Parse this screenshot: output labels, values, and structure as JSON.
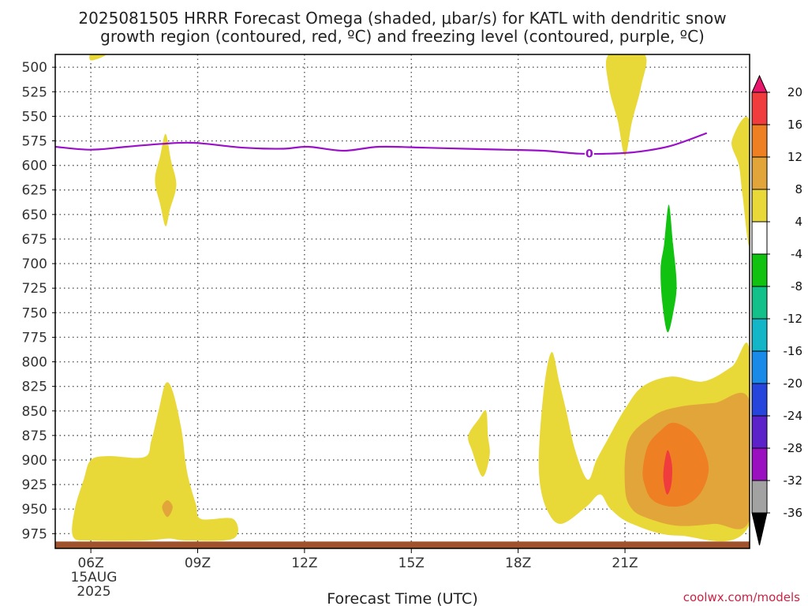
{
  "title_lines": [
    "2025081505 HRRR Forecast Omega (shaded, μbar/s) for KATL with dendritic snow",
    "growth region (contoured, red, ºC) and freezing level (contoured, purple, ºC)"
  ],
  "credit": "coolwx.com/models",
  "chart_data": {
    "type": "heatmap",
    "title": "2025081505 HRRR Forecast Omega (shaded, μbar/s) for KATL with dendritic snow growth region (contoured, red, ºC) and freezing level (contoured, purple, ºC)",
    "xlabel": "Forecast Time (UTC)",
    "ylabel": "",
    "x_axis": {
      "unit": "hour UTC",
      "range": [
        5,
        24.5
      ],
      "ticks": [
        6,
        9,
        12,
        15,
        18,
        21
      ],
      "tick_labels": [
        "06Z",
        "09Z",
        "12Z",
        "15Z",
        "18Z",
        "21Z"
      ],
      "date_label_lines": [
        "15AUG",
        "2025"
      ]
    },
    "y_axis": {
      "unit": "hPa",
      "range": [
        990,
        487
      ],
      "ticks": [
        500,
        525,
        550,
        575,
        600,
        625,
        650,
        675,
        700,
        725,
        750,
        775,
        800,
        825,
        850,
        875,
        900,
        925,
        950,
        975
      ],
      "grid": "dotted"
    },
    "colorbar": {
      "label_values": [
        20,
        16,
        12,
        8,
        4,
        -4,
        -8,
        -12,
        -16,
        -20,
        -24,
        -28,
        -32,
        -36
      ],
      "bands": [
        {
          "min": 20,
          "max": null,
          "color": "#e8176c"
        },
        {
          "min": 16,
          "max": 20,
          "color": "#f03c3c"
        },
        {
          "min": 12,
          "max": 16,
          "color": "#ee7f22"
        },
        {
          "min": 8,
          "max": 12,
          "color": "#e2a53a"
        },
        {
          "min": 4,
          "max": 8,
          "color": "#e8d838"
        },
        {
          "min": -4,
          "max": 4,
          "color": "#ffffff"
        },
        {
          "min": -8,
          "max": -4,
          "color": "#11c211"
        },
        {
          "min": -12,
          "max": -8,
          "color": "#13c08a"
        },
        {
          "min": -16,
          "max": -12,
          "color": "#12b6c6"
        },
        {
          "min": -20,
          "max": -16,
          "color": "#1a8ae8"
        },
        {
          "min": -24,
          "max": -20,
          "color": "#2545dc"
        },
        {
          "min": -28,
          "max": -24,
          "color": "#5a22c8"
        },
        {
          "min": -32,
          "max": -28,
          "color": "#9a10c0"
        },
        {
          "min": -36,
          "max": -32,
          "color": "#a2a2a2"
        },
        {
          "min": null,
          "max": -36,
          "color": "#000000"
        }
      ]
    },
    "freezing_level": {
      "label": "0",
      "color": "#9a10c8",
      "points": [
        [
          5,
          581
        ],
        [
          6,
          584
        ],
        [
          7,
          581
        ],
        [
          8,
          578
        ],
        [
          8.9,
          577
        ],
        [
          10.3,
          582
        ],
        [
          11.4,
          583
        ],
        [
          12.1,
          581
        ],
        [
          13.1,
          585
        ],
        [
          14.1,
          581
        ],
        [
          15.4,
          582
        ],
        [
          16.5,
          583
        ],
        [
          17.6,
          584
        ],
        [
          18.7,
          585
        ],
        [
          19.7,
          588
        ],
        [
          20.6,
          588
        ],
        [
          21.4,
          586
        ],
        [
          22.3,
          580
        ],
        [
          23.3,
          567
        ]
      ]
    },
    "omega_regions": [
      {
        "name": "omega-yellow-region",
        "value_band": [
          4,
          8
        ],
        "color": "#e8d838",
        "points": [
          [
            6.0,
            487
          ],
          [
            6.4,
            487
          ],
          [
            6.3,
            490
          ],
          [
            6.0,
            493
          ]
        ]
      },
      {
        "name": "omega-yellow-region",
        "value_band": [
          4,
          8
        ],
        "color": "#e8d838",
        "points": [
          [
            8.1,
            568
          ],
          [
            8.25,
            595
          ],
          [
            8.4,
            620
          ],
          [
            8.22,
            645
          ],
          [
            8.1,
            662
          ],
          [
            7.95,
            640
          ],
          [
            7.8,
            615
          ],
          [
            7.95,
            590
          ]
        ]
      },
      {
        "name": "omega-yellow-region",
        "value_band": [
          4,
          8
        ],
        "color": "#e8d838",
        "points": [
          [
            20.55,
            487
          ],
          [
            21.55,
            487
          ],
          [
            21.45,
            520
          ],
          [
            21.2,
            555
          ],
          [
            21.0,
            590
          ],
          [
            20.8,
            555
          ],
          [
            20.55,
            520
          ]
        ]
      },
      {
        "name": "omega-yellow-region",
        "value_band": [
          4,
          8
        ],
        "color": "#e8d838",
        "points": [
          [
            24.0,
            575
          ],
          [
            24.5,
            556
          ],
          [
            24.5,
            680
          ],
          [
            24.3,
            630
          ],
          [
            24.2,
            600
          ]
        ]
      },
      {
        "name": "omega-yellow-region",
        "value_band": [
          4,
          8
        ],
        "color": "#e8d838",
        "points": [
          [
            5.5,
            978
          ],
          [
            5.55,
            950
          ],
          [
            5.8,
            920
          ],
          [
            6.0,
            900
          ],
          [
            6.5,
            896
          ],
          [
            7.5,
            897
          ],
          [
            7.7,
            880
          ],
          [
            7.9,
            850
          ],
          [
            8.1,
            822
          ],
          [
            8.3,
            830
          ],
          [
            8.55,
            870
          ],
          [
            8.65,
            900
          ],
          [
            8.75,
            920
          ],
          [
            8.95,
            945
          ],
          [
            9.1,
            960
          ],
          [
            10.0,
            960
          ],
          [
            10.0,
            980
          ],
          [
            8.7,
            982
          ],
          [
            8.2,
            980
          ],
          [
            7.5,
            982
          ],
          [
            6.0,
            982
          ]
        ]
      },
      {
        "name": "omega-yellow-region",
        "value_band": [
          4,
          8
        ],
        "color": "#e8d838",
        "points": [
          [
            16.9,
            858
          ],
          [
            17.1,
            850
          ],
          [
            17.15,
            875
          ],
          [
            17.2,
            895
          ],
          [
            17.0,
            917
          ],
          [
            16.7,
            890
          ],
          [
            16.6,
            875
          ]
        ]
      },
      {
        "name": "omega-yellow-region",
        "value_band": [
          4,
          8
        ],
        "color": "#e8d838",
        "points": [
          [
            18.6,
            880
          ],
          [
            18.75,
            820
          ],
          [
            18.95,
            790
          ],
          [
            19.15,
            820
          ],
          [
            19.35,
            850
          ],
          [
            19.6,
            890
          ],
          [
            19.95,
            920
          ],
          [
            20.2,
            900
          ],
          [
            20.5,
            880
          ],
          [
            21.0,
            848
          ],
          [
            21.5,
            825
          ],
          [
            22.3,
            815
          ],
          [
            23.2,
            820
          ],
          [
            24.0,
            805
          ],
          [
            24.5,
            790
          ],
          [
            24.5,
            965
          ],
          [
            22.5,
            977
          ],
          [
            21.2,
            965
          ],
          [
            20.6,
            950
          ],
          [
            20.3,
            935
          ],
          [
            19.9,
            948
          ],
          [
            19.2,
            965
          ],
          [
            18.8,
            950
          ],
          [
            18.6,
            920
          ]
        ]
      },
      {
        "name": "omega-orange-region",
        "value_band": [
          8,
          12
        ],
        "color": "#e2a53a",
        "points": [
          [
            8.0,
            948
          ],
          [
            8.15,
            941
          ],
          [
            8.3,
            948
          ],
          [
            8.15,
            958
          ]
        ]
      },
      {
        "name": "omega-orange-region",
        "value_band": [
          8,
          12
        ],
        "color": "#e2a53a",
        "points": [
          [
            21.0,
            928
          ],
          [
            21.1,
            880
          ],
          [
            21.8,
            855
          ],
          [
            22.5,
            846
          ],
          [
            23.5,
            842
          ],
          [
            24.5,
            840
          ],
          [
            24.5,
            960
          ],
          [
            23.5,
            965
          ],
          [
            22.5,
            967
          ],
          [
            21.7,
            960
          ],
          [
            21.2,
            950
          ]
        ]
      },
      {
        "name": "omega-dark-orange-region",
        "value_band": [
          12,
          16
        ],
        "color": "#ee7f22",
        "points": [
          [
            21.5,
            910
          ],
          [
            21.65,
            885
          ],
          [
            22.0,
            870
          ],
          [
            22.35,
            862
          ],
          [
            22.85,
            870
          ],
          [
            23.2,
            888
          ],
          [
            23.35,
            910
          ],
          [
            23.15,
            932
          ],
          [
            22.75,
            945
          ],
          [
            22.2,
            947
          ],
          [
            21.75,
            940
          ],
          [
            21.55,
            925
          ]
        ]
      },
      {
        "name": "omega-red-region",
        "value_band": [
          16,
          20
        ],
        "color": "#f03c3c",
        "points": [
          [
            22.1,
            905
          ],
          [
            22.2,
            890
          ],
          [
            22.32,
            905
          ],
          [
            22.3,
            925
          ],
          [
            22.18,
            935
          ],
          [
            22.08,
            920
          ]
        ]
      },
      {
        "name": "omega-green-region",
        "value_band": [
          -8,
          -4
        ],
        "color": "#11c211",
        "points": [
          [
            22.0,
            705
          ],
          [
            22.1,
            680
          ],
          [
            22.23,
            640
          ],
          [
            22.35,
            680
          ],
          [
            22.45,
            720
          ],
          [
            22.38,
            745
          ],
          [
            22.2,
            770
          ],
          [
            22.05,
            740
          ]
        ]
      }
    ],
    "terrain_strip": {
      "color": "#a0522d",
      "pressure_range": [
        983,
        990
      ]
    }
  }
}
